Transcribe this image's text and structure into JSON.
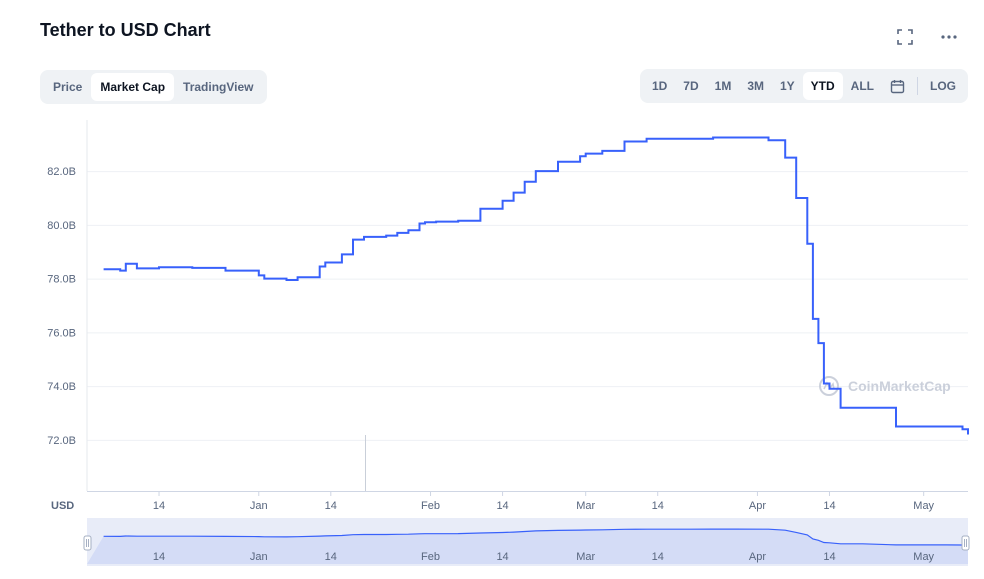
{
  "header": {
    "title": "Tether to USD Chart"
  },
  "tabs": [
    {
      "label": "Price",
      "active": false
    },
    {
      "label": "Market Cap",
      "active": true
    },
    {
      "label": "TradingView",
      "active": false
    }
  ],
  "ranges": [
    {
      "label": "1D",
      "active": false
    },
    {
      "label": "7D",
      "active": false
    },
    {
      "label": "1M",
      "active": false
    },
    {
      "label": "3M",
      "active": false
    },
    {
      "label": "1Y",
      "active": false
    },
    {
      "label": "YTD",
      "active": true
    },
    {
      "label": "ALL",
      "active": false
    }
  ],
  "log_label": "LOG",
  "icons": {
    "fullscreen": "fullscreen-icon",
    "more": "more-options-icon",
    "calendar": "calendar-icon"
  },
  "watermark": "CoinMarketCap",
  "colors": {
    "line": "#3861fb",
    "navigator_fill": "#d9e0f8",
    "navigator_highlight": "#c8d2f5"
  },
  "chart_data": {
    "type": "line",
    "series": [
      {
        "name": "",
        "x": [
          "Dec 4",
          "Dec 7",
          "Dec 8",
          "Dec 10",
          "Dec 14",
          "Dec 20",
          "Dec 26",
          "Jan 1",
          "Jan 2",
          "Jan 6",
          "Jan 8",
          "Jan 12",
          "Jan 13",
          "Jan 16",
          "Jan 18",
          "Jan 20",
          "Jan 24",
          "Jan 26",
          "Jan 28",
          "Jan 30",
          "Jan 31",
          "Feb 2",
          "Feb 6",
          "Feb 10",
          "Feb 14",
          "Feb 16",
          "Feb 18",
          "Feb 20",
          "Feb 24",
          "Feb 28",
          "Mar 1",
          "Mar 4",
          "Mar 8",
          "Mar 12",
          "Mar 16",
          "Mar 20",
          "Mar 24",
          "Mar 28",
          "Apr 3",
          "Apr 6",
          "Apr 8",
          "Apr 10",
          "Apr 11",
          "Apr 12",
          "Apr 13",
          "Apr 14",
          "Apr 16",
          "Apr 20",
          "Apr 26",
          "May 2",
          "May 5",
          "May 8",
          "May 9"
        ],
        "y": [
          78.35,
          78.3,
          78.55,
          78.38,
          78.42,
          78.4,
          78.3,
          78.12,
          78.0,
          77.95,
          78.05,
          78.45,
          78.6,
          78.9,
          79.45,
          79.55,
          79.6,
          79.7,
          79.8,
          80.05,
          80.1,
          80.12,
          80.15,
          80.6,
          80.9,
          81.2,
          81.6,
          82.0,
          82.35,
          82.55,
          82.65,
          82.75,
          83.1,
          83.2,
          83.2,
          83.2,
          83.25,
          83.25,
          83.15,
          82.5,
          81.0,
          79.3,
          76.5,
          75.6,
          74.1,
          73.9,
          73.2,
          73.2,
          72.5,
          72.5,
          72.5,
          72.4,
          72.2
        ]
      }
    ],
    "x_ticks": [
      "14",
      "Jan",
      "14",
      "Feb",
      "14",
      "Mar",
      "14",
      "Apr",
      "14",
      "May"
    ],
    "y_ticks": [
      "72.0B",
      "74.0B",
      "76.0B",
      "78.0B",
      "80.0B",
      "82.0B"
    ],
    "y_axis_unit": "USD",
    "ylim": [
      70.1,
      83.9
    ],
    "grid": true
  }
}
